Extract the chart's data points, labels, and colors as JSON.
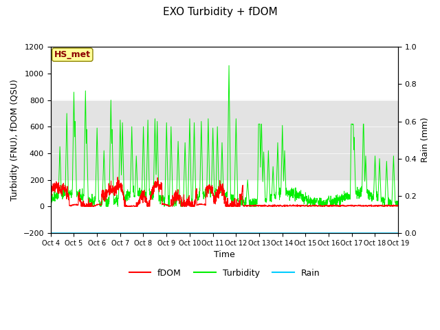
{
  "title": "EXO Turbidity + fDOM",
  "ylabel_left": "Turbidity (FNU), fDOM (QSU)",
  "ylabel_right": "Rain (mm)",
  "xlabel": "Time",
  "ylim_left": [
    -200,
    1200
  ],
  "ylim_right": [
    0.0,
    1.0
  ],
  "yticks_left": [
    -200,
    0,
    200,
    400,
    600,
    800,
    1000,
    1200
  ],
  "yticks_right": [
    0.0,
    0.2,
    0.4,
    0.6,
    0.8,
    1.0
  ],
  "xtick_labels": [
    "Oct 4",
    "Oct 5",
    "Oct 6",
    "Oct 7",
    "Oct 8",
    "Oct 9",
    "Oct 10",
    "Oct 11",
    "Oct 12",
    "Oct 13",
    "Oct 14",
    "Oct 15",
    "Oct 16",
    "Oct 17",
    "Oct 18",
    "Oct 19"
  ],
  "shaded_region": [
    200,
    800
  ],
  "annotation_label": "HS_met",
  "annotation_color": "#8B0000",
  "annotation_bg": "#FFFF99",
  "annotation_edge": "#8B8000",
  "fdom_color": "#FF0000",
  "turbidity_color": "#00EE00",
  "rain_color": "#00CCFF",
  "background_color": "#FFFFFF",
  "plot_bg": "#FFFFFF",
  "figsize": [
    6.4,
    4.8
  ],
  "dpi": 100
}
